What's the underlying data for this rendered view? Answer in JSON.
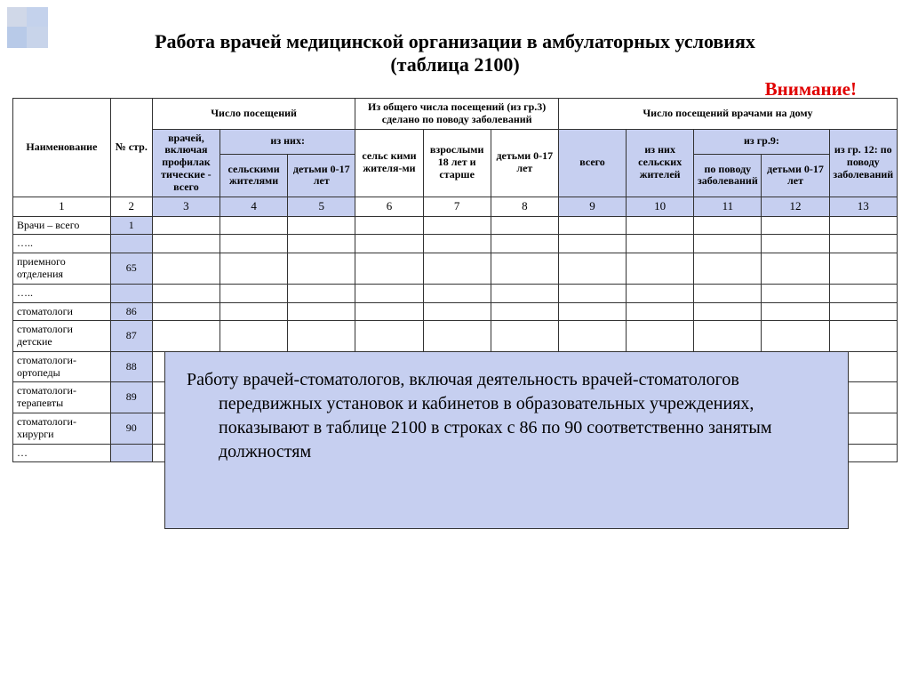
{
  "title_line1": "Работа врачей медицинской организации в амбулаторных условиях",
  "title_line2": "(таблица 2100)",
  "warning": "Внимание!",
  "header": {
    "hName": "Наименование",
    "hNum": "№ стр.",
    "hVisits": "Число посещений",
    "hFromTotal": "Из общего числа посещений (из гр.3) сделано по поводу заболеваний",
    "hHome": "Число посещений врачами на дому",
    "hDocTotal": "врачей, включая профилак тические - всего",
    "hOfThem": "из них:",
    "hRural": "сельскими жителями",
    "hChild017": "детьми 0-17 лет",
    "hRuralRes": "сельс кими жителя-ми",
    "hAdult18": "взрослыми 18 лет и старше",
    "hChild017b": "детьми 0-17 лет",
    "hTotal": "всего",
    "hOfRural": "из них сельских жителей",
    "hFromGr9": "из гр.9:",
    "hByDisease": "по поводу заболеваний",
    "hChild017c": "детьми 0-17 лет",
    "hFromGr12": "из гр. 12: по поводу заболеваний"
  },
  "colnums": [
    "1",
    "2",
    "3",
    "4",
    "5",
    "6",
    "7",
    "8",
    "9",
    "10",
    "11",
    "12",
    "13"
  ],
  "rows": [
    {
      "name": "Врачи – всего",
      "num": "1"
    },
    {
      "name": "…..",
      "num": ""
    },
    {
      "name": "приемного отделения",
      "num": "65"
    },
    {
      "name": "…..",
      "num": ""
    },
    {
      "name": "стоматологи",
      "num": "86"
    },
    {
      "name": "стоматологи детские",
      "num": "87"
    },
    {
      "name": "стоматологи-ортопеды",
      "num": "88"
    },
    {
      "name": "стоматологи-терапевты",
      "num": "89"
    },
    {
      "name": "стоматологи-хирурги",
      "num": "90"
    },
    {
      "name": "…",
      "num": ""
    }
  ],
  "note": "Работу врачей-стоматологов, включая деятельность врачей-стоматологов передвижных установок и кабинетов в образовательных учреждениях, показывают в таблице 2100 в строках с 86 по 90 соответственно занятым должностям",
  "colors": {
    "highlight": "#c6cff0",
    "warning": "#e00000",
    "border": "#333333",
    "bg": "#ffffff"
  },
  "typography": {
    "title_pt": 22,
    "header_pt": 12,
    "body_pt": 13,
    "note_pt": 20
  }
}
